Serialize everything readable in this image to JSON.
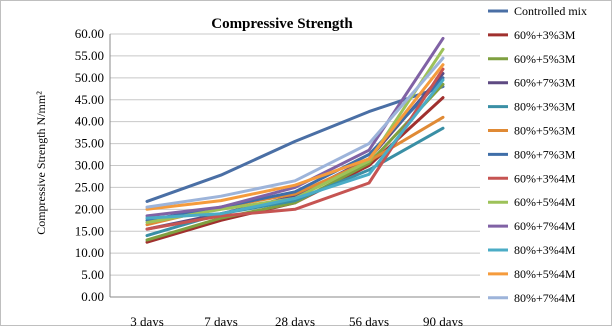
{
  "chart_data": {
    "type": "line",
    "title": "Compressive Strength",
    "ylabel": "Compressive Strength N/mm²",
    "xlabel": "",
    "categories": [
      "3 days",
      "7 days",
      "28 days",
      "56 days",
      "90 days"
    ],
    "ylim": [
      0,
      60
    ],
    "yticks": [
      "0.00",
      "5.00",
      "10.00",
      "15.00",
      "20.00",
      "25.00",
      "30.00",
      "35.00",
      "40.00",
      "45.00",
      "50.00",
      "55.00",
      "60.00"
    ],
    "grid": true,
    "legend_position": "right",
    "series": [
      {
        "name": "Controlled mix",
        "color": "#4A6FA5",
        "values": [
          21.8,
          27.8,
          35.5,
          42.3,
          48.0
        ]
      },
      {
        "name": "60%+3%3M",
        "color": "#A0302E",
        "values": [
          12.5,
          17.5,
          21.5,
          30.0,
          45.5
        ]
      },
      {
        "name": "60%+5%3M",
        "color": "#7FA040",
        "values": [
          13.0,
          18.0,
          21.5,
          30.5,
          48.5
        ]
      },
      {
        "name": "60%+7%3M",
        "color": "#5E4A82",
        "values": [
          15.5,
          19.0,
          23.0,
          31.5,
          51.0
        ]
      },
      {
        "name": "80%+3%3M",
        "color": "#3A8FA5",
        "values": [
          14.0,
          19.0,
          22.0,
          29.0,
          38.5
        ]
      },
      {
        "name": "80%+5%3M",
        "color": "#E08A35",
        "values": [
          16.5,
          20.5,
          23.5,
          31.0,
          41.0
        ]
      },
      {
        "name": "80%+7%3M",
        "color": "#3F6EA8",
        "values": [
          17.5,
          20.5,
          24.0,
          32.5,
          50.0
        ]
      },
      {
        "name": "60%+3%4M",
        "color": "#C65452",
        "values": [
          15.5,
          18.5,
          20.0,
          26.0,
          52.0
        ]
      },
      {
        "name": "60%+5%4M",
        "color": "#9DC259",
        "values": [
          17.0,
          20.0,
          22.5,
          31.0,
          56.5
        ]
      },
      {
        "name": "60%+7%4M",
        "color": "#8062A5",
        "values": [
          18.5,
          20.5,
          25.0,
          33.5,
          59.0
        ]
      },
      {
        "name": "80%+3%4M",
        "color": "#4BACC6",
        "values": [
          18.0,
          19.0,
          22.5,
          28.0,
          49.5
        ]
      },
      {
        "name": "80%+5%4M",
        "color": "#F59B3C",
        "values": [
          20.0,
          22.0,
          25.5,
          31.5,
          53.0
        ]
      },
      {
        "name": "80%+7%4M",
        "color": "#9DB4DA",
        "values": [
          20.5,
          23.0,
          26.5,
          35.0,
          54.5
        ]
      }
    ]
  }
}
